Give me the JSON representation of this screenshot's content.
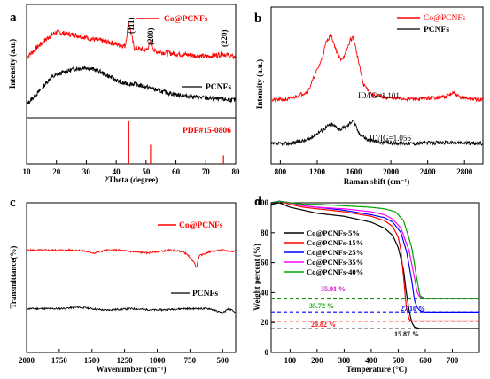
{
  "chart_data": [
    {
      "type": "line",
      "panel": "a",
      "xlabel": "2Theta (degree)",
      "ylabel": "Intensity (a.u.)",
      "xlim": [
        10,
        80
      ],
      "xticks": [
        "10",
        "20",
        "30",
        "40",
        "50",
        "60",
        "70",
        "80"
      ],
      "series": [
        {
          "name": "Co@PCNFs",
          "color": "#ff0000",
          "x": [
            10,
            14,
            18,
            20,
            23,
            27,
            32,
            38,
            43,
            44.2,
            46,
            50,
            51.5,
            53,
            58,
            64,
            70,
            75.9,
            80
          ],
          "y": [
            0.55,
            0.68,
            0.8,
            0.84,
            0.82,
            0.8,
            0.76,
            0.72,
            0.68,
            0.95,
            0.66,
            0.63,
            0.72,
            0.62,
            0.6,
            0.58,
            0.56,
            0.59,
            0.55
          ]
        },
        {
          "name": "PCNFs",
          "color": "#000000",
          "x": [
            10,
            14,
            18,
            22,
            26,
            30,
            34,
            38,
            42,
            46,
            50,
            56,
            62,
            68,
            74,
            80
          ],
          "y": [
            0.02,
            0.16,
            0.32,
            0.38,
            0.42,
            0.44,
            0.4,
            0.33,
            0.26,
            0.25,
            0.22,
            0.16,
            0.12,
            0.1,
            0.08,
            0.07
          ]
        }
      ],
      "annotations": [
        "(111)",
        "(200)",
        "(220)"
      ],
      "reference": {
        "label": "PDF#15-0806",
        "color": "#ff0000",
        "x": [
          44.2,
          51.5,
          75.9
        ],
        "rel_intensity": [
          1.0,
          0.45,
          0.2
        ]
      }
    },
    {
      "type": "line",
      "panel": "b",
      "xlabel": "Raman shift (cm⁻¹)",
      "ylabel": "Intensity (a.u.)",
      "xlim": [
        700,
        3000
      ],
      "xticks": [
        "800",
        "1200",
        "1600",
        "2000",
        "2400",
        "2800"
      ],
      "series": [
        {
          "name": "Co@PCNFs",
          "color": "#ff0000",
          "x": [
            700,
            900,
            1100,
            1250,
            1300,
            1350,
            1400,
            1450,
            1500,
            1560,
            1590,
            1620,
            1700,
            1800,
            2000,
            2300,
            2600,
            2680,
            2750,
            3000
          ],
          "y": [
            0.12,
            0.13,
            0.22,
            0.58,
            0.78,
            0.86,
            0.7,
            0.58,
            0.62,
            0.8,
            0.83,
            0.7,
            0.3,
            0.18,
            0.14,
            0.13,
            0.16,
            0.2,
            0.15,
            0.12
          ]
        },
        {
          "name": "PCNFs",
          "color": "#000000",
          "x": [
            700,
            900,
            1100,
            1250,
            1350,
            1450,
            1520,
            1590,
            1650,
            1750,
            1900,
            2200,
            2600,
            3000
          ],
          "y": [
            -0.38,
            -0.37,
            -0.33,
            -0.22,
            -0.15,
            -0.21,
            -0.18,
            -0.1,
            -0.25,
            -0.33,
            -0.36,
            -0.37,
            -0.36,
            -0.37
          ]
        }
      ],
      "annotations": [
        "ID/IG=1.101",
        "ID/IG=1.056"
      ]
    },
    {
      "type": "line",
      "panel": "c",
      "xlabel": "Wavenumber (cm⁻¹)",
      "ylabel": "Transmittance(%)",
      "xlim": [
        2000,
        400
      ],
      "xticks": [
        "2000",
        "1750",
        "1500",
        "1250",
        "1000",
        "750",
        "500"
      ],
      "series": [
        {
          "name": "Co@PCNFs",
          "color": "#ff0000",
          "x": [
            2000,
            1800,
            1600,
            1480,
            1440,
            1380,
            1300,
            1200,
            1080,
            1000,
            900,
            800,
            760,
            720,
            700,
            680,
            600,
            500,
            420,
            400
          ],
          "y": [
            0.7,
            0.7,
            0.7,
            0.68,
            0.69,
            0.7,
            0.7,
            0.69,
            0.68,
            0.69,
            0.7,
            0.69,
            0.66,
            0.62,
            0.58,
            0.66,
            0.69,
            0.7,
            0.69,
            0.7
          ]
        },
        {
          "name": "PCNFs",
          "color": "#000000",
          "x": [
            2000,
            1750,
            1600,
            1500,
            1400,
            1200,
            1000,
            800,
            600,
            500,
            450,
            400
          ],
          "y": [
            0.3,
            0.3,
            0.31,
            0.3,
            0.29,
            0.3,
            0.29,
            0.3,
            0.3,
            0.27,
            0.3,
            0.27
          ]
        }
      ]
    },
    {
      "type": "line",
      "panel": "d",
      "xlabel": "Temperature (°C)",
      "ylabel": "Weight percent (%)",
      "xlim": [
        30,
        800
      ],
      "ylim": [
        0,
        100
      ],
      "xticks": [
        "100",
        "200",
        "300",
        "400",
        "500",
        "600",
        "700"
      ],
      "yticks": [
        "0",
        "20",
        "40",
        "60",
        "80",
        "100"
      ],
      "legend": "top-right",
      "series": [
        {
          "name": "Co@PCNFs-5%",
          "color": "#000000",
          "x": [
            30,
            60,
            100,
            150,
            200,
            300,
            400,
            450,
            480,
            500,
            520,
            530,
            540,
            550,
            560,
            580,
            600,
            700,
            800
          ],
          "y": [
            99,
            100,
            97,
            95,
            93,
            91,
            87,
            83,
            78,
            70,
            55,
            40,
            28,
            20,
            17,
            16,
            16,
            16,
            16
          ]
        },
        {
          "name": "Co@PCNFs-15%",
          "color": "#ff0000",
          "x": [
            30,
            60,
            100,
            150,
            200,
            300,
            400,
            450,
            480,
            500,
            510,
            520,
            530,
            540,
            550,
            600,
            700,
            800
          ],
          "y": [
            100,
            101,
            99,
            97,
            96,
            94,
            91,
            88,
            84,
            77,
            68,
            50,
            30,
            22,
            21,
            21,
            21,
            21
          ]
        },
        {
          "name": "Co@PCNFs-25%",
          "color": "#0000ff",
          "x": [
            30,
            60,
            100,
            150,
            200,
            300,
            400,
            450,
            480,
            510,
            530,
            550,
            560,
            570,
            580,
            600,
            700,
            800
          ],
          "y": [
            100,
            101,
            100,
            98,
            97,
            95,
            92,
            90,
            87,
            80,
            68,
            48,
            35,
            30,
            28,
            27,
            27,
            27
          ]
        },
        {
          "name": "Co@PCNFs-35%",
          "color": "#ff00ff",
          "x": [
            30,
            60,
            100,
            150,
            200,
            300,
            400,
            450,
            480,
            510,
            540,
            560,
            570,
            580,
            600,
            700,
            800
          ],
          "y": [
            100,
            101,
            100,
            98,
            97,
            96,
            94,
            92,
            89,
            83,
            68,
            50,
            40,
            37,
            36,
            36,
            36
          ]
        },
        {
          "name": "Co@PCNFs-40%",
          "color": "#00a000",
          "x": [
            30,
            60,
            100,
            150,
            200,
            300,
            400,
            450,
            490,
            520,
            550,
            570,
            580,
            600,
            700,
            800
          ],
          "y": [
            100,
            101,
            100,
            99,
            99,
            98,
            97,
            96,
            94,
            88,
            70,
            48,
            38,
            36,
            36,
            36
          ]
        }
      ],
      "annotations": [
        {
          "text": "35.91 %",
          "color": "#cc00cc",
          "value": 35.91
        },
        {
          "text": "35.72 %",
          "color": "#00a000",
          "value": 35.72
        },
        {
          "text": "27.10 %",
          "color": "#0000ff",
          "value": 27.1
        },
        {
          "text": "20.82 %",
          "color": "#ff0000",
          "value": 20.82
        },
        {
          "text": "15.87 %",
          "color": "#000000",
          "value": 15.87
        }
      ]
    }
  ],
  "labels": {
    "a": {
      "panel": "a",
      "legend_co": "Co@PCNFs",
      "legend_pcnfs": "PCNFs",
      "peak_111": "(111)",
      "peak_200": "(200)",
      "peak_220": "(220)",
      "pdf": "PDF#15-0806",
      "xlabel": "2Theta (degree)",
      "ylabel": "Intensity (a.u.)",
      "ticks": [
        "10",
        "20",
        "30",
        "40",
        "50",
        "60",
        "70",
        "80"
      ]
    },
    "b": {
      "panel": "b",
      "legend_co": "Co@PCNFs",
      "legend_pcnfs": "PCNFs",
      "ratio_co": "ID/IG=1.101",
      "ratio_pcnfs": "ID/IG=1.056",
      "xlabel": "Raman shift (cm⁻¹)",
      "ylabel": "Intensity (a.u.)",
      "ticks": [
        "800",
        "1200",
        "1600",
        "2000",
        "2400",
        "2800"
      ]
    },
    "c": {
      "panel": "c",
      "legend_co": "Co@PCNFs",
      "legend_pcnfs": "PCNFs",
      "xlabel": "Wavenumber (cm⁻¹)",
      "ylabel": "Transmittance(%)",
      "ticks": [
        "2000",
        "1750",
        "1500",
        "1250",
        "1000",
        "750",
        "500"
      ]
    },
    "d": {
      "panel": "d",
      "legend": [
        "Co@PCNFs-5%",
        "Co@PCNFs-15%",
        "Co@PCNFs-25%",
        "Co@PCNFs-35%",
        "Co@PCNFs-40%"
      ],
      "xlabel": "Temperature (°C)",
      "ylabel": "Weight percent (%)",
      "xticks": [
        "100",
        "200",
        "300",
        "400",
        "500",
        "600",
        "700"
      ],
      "yticks": [
        "0",
        "20",
        "40",
        "60",
        "80",
        "100"
      ]
    }
  }
}
